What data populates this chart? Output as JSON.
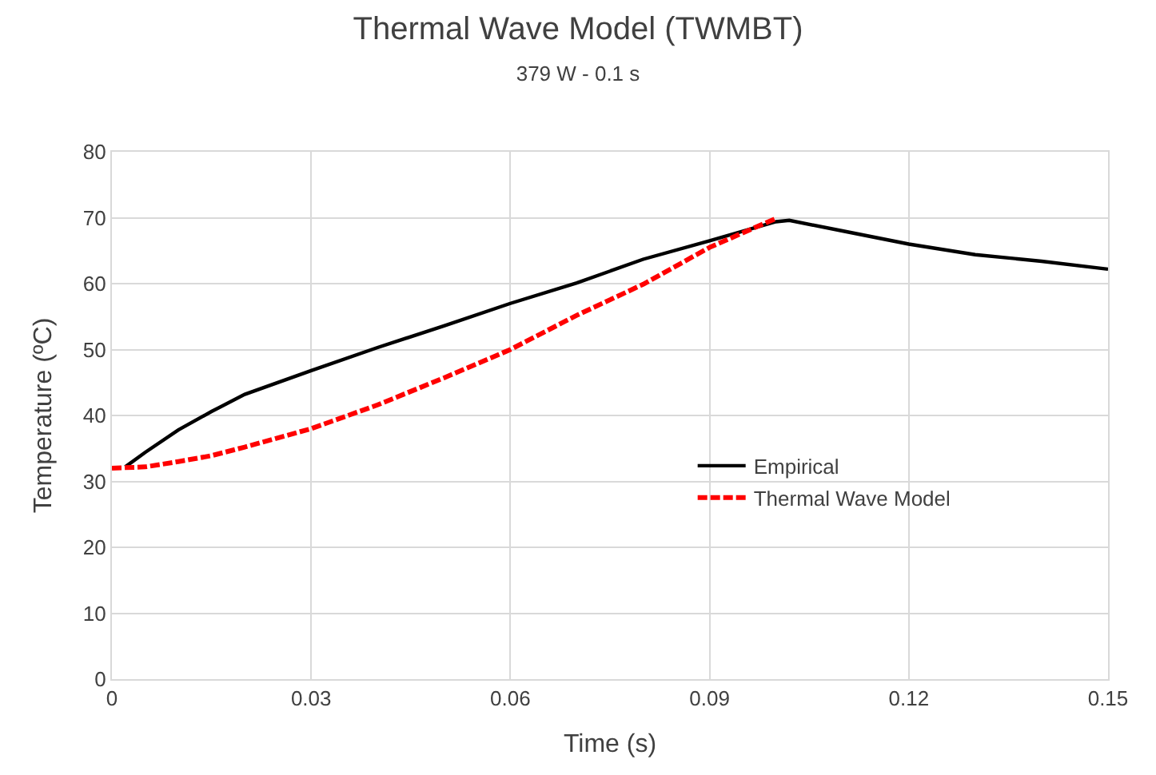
{
  "chart_data": {
    "type": "line",
    "title": "Thermal Wave Model (TWMBT)",
    "subtitle": "379 W - 0.1 s",
    "xlabel": "Time (s)",
    "ylabel": "Temperature (ºC)",
    "series": [
      {
        "name": "Empirical",
        "color": "#000000",
        "line_style": "solid",
        "x": [
          0.002,
          0.005,
          0.01,
          0.015,
          0.02,
          0.03,
          0.04,
          0.05,
          0.06,
          0.07,
          0.08,
          0.09,
          0.1,
          0.102,
          0.11,
          0.12,
          0.13,
          0.14,
          0.15
        ],
        "values": [
          32.2,
          34.4,
          37.8,
          40.6,
          43.2,
          46.8,
          50.3,
          53.6,
          57.0,
          60.1,
          63.7,
          66.5,
          69.4,
          69.6,
          68.0,
          66.0,
          64.4,
          63.4,
          62.2
        ]
      },
      {
        "name": "Thermal Wave Model",
        "color": "#ff0000",
        "line_style": "dashed",
        "x": [
          0,
          0.005,
          0.01,
          0.015,
          0.02,
          0.03,
          0.04,
          0.05,
          0.06,
          0.07,
          0.08,
          0.09,
          0.1
        ],
        "values": [
          32.0,
          32.2,
          33.0,
          33.9,
          35.2,
          38.0,
          41.6,
          45.7,
          50.0,
          55.2,
          59.9,
          65.5,
          69.9
        ]
      }
    ],
    "xlim": [
      0,
      0.15
    ],
    "xticks": [
      0,
      0.03,
      0.06,
      0.09,
      0.12,
      0.15
    ],
    "ylim": [
      0,
      80
    ],
    "yticks": [
      0,
      10,
      20,
      30,
      40,
      50,
      60,
      70,
      80
    ],
    "grid": true,
    "legend": "right",
    "marker": "none"
  }
}
